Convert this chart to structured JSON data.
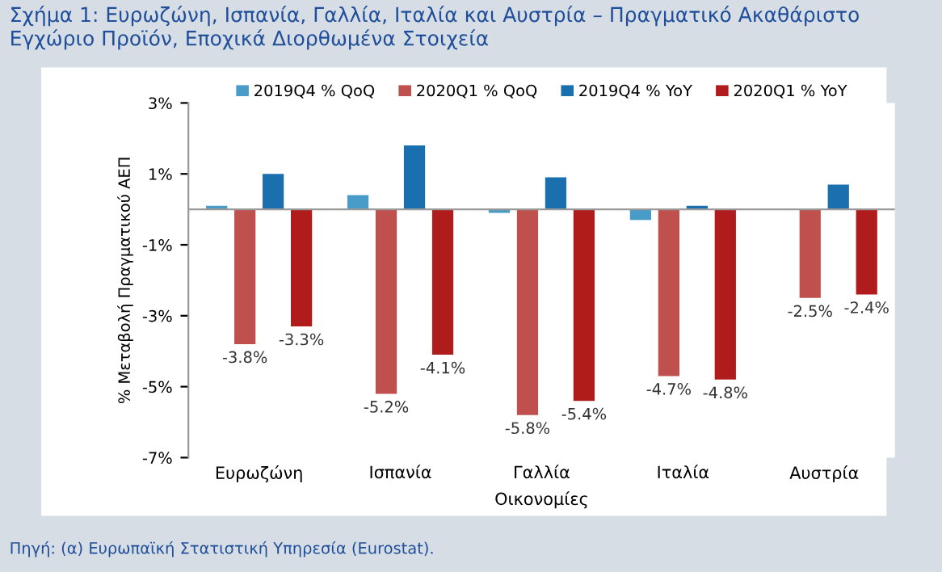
{
  "chart_data": {
    "type": "bar",
    "title": "Σχήμα 1: Ευρωζώνη, Ισπανία, Γαλλία, Ιταλία και Αυστρία – Πραγματικό Ακαθάριστο Εγχώριο Προϊόν, Εποχικά Διορθωμένα Στοιχεία",
    "xlabel": "Οικονομίες",
    "ylabel": "% Μεταβολή Πραγματικού ΑΕΠ",
    "categories": [
      "Ευρωζώνη",
      "Ισπανία",
      "Γαλλία",
      "Ιταλία",
      "Αυστρία"
    ],
    "series": [
      {
        "name": "2019Q4 % QoQ",
        "color": "#4a9cc8",
        "values": [
          0.1,
          0.4,
          -0.1,
          -0.3,
          0.0
        ]
      },
      {
        "name": "2020Q1 % QoQ",
        "color": "#c0504d",
        "values": [
          -3.8,
          -5.2,
          -5.8,
          -4.7,
          -2.5
        ],
        "value_labels": [
          "-3.8%",
          "-5.2%",
          "-5.8%",
          "-4.7%",
          "-2.5%"
        ]
      },
      {
        "name": "2019Q4 % YoY",
        "color": "#1a6faf",
        "values": [
          1.0,
          1.8,
          0.9,
          0.1,
          0.7
        ]
      },
      {
        "name": "2020Q1 % YoY",
        "color": "#b01c1c",
        "values": [
          -3.3,
          -4.1,
          -5.4,
          -4.8,
          -2.4
        ],
        "value_labels": [
          "-3.3%",
          "-4.1%",
          "-5.4%",
          "-4.8%",
          "-2.4%"
        ]
      }
    ],
    "ylim": [
      -7,
      3
    ],
    "yticks": [
      {
        "value": -7,
        "label": "-7%"
      },
      {
        "value": -5,
        "label": "-5%"
      },
      {
        "value": -3,
        "label": "-3%"
      },
      {
        "value": -1,
        "label": "-1%"
      },
      {
        "value": 1,
        "label": "1%"
      },
      {
        "value": 3,
        "label": "3%"
      }
    ],
    "grid": false,
    "legend": "top",
    "annotations": [
      "Πηγή: (α) Ευρωπαϊκή Στατιστική Υπηρεσία (Eurostat)."
    ]
  }
}
